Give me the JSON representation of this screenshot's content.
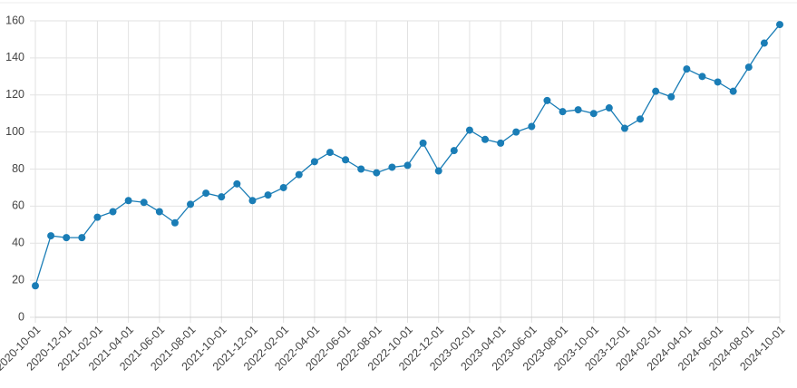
{
  "chart_data": {
    "type": "line",
    "categories": [
      "2020-10-01",
      null,
      "2020-12-01",
      null,
      "2021-02-01",
      null,
      "2021-04-01",
      null,
      "2021-06-01",
      null,
      "2021-08-01",
      null,
      "2021-10-01",
      null,
      "2021-12-01",
      null,
      "2022-02-01",
      null,
      "2022-04-01",
      null,
      "2022-06-01",
      null,
      "2022-08-01",
      null,
      "2022-10-01",
      null,
      "2022-12-01",
      null,
      "2023-02-01",
      null,
      "2023-04-01",
      null,
      "2023-06-01",
      null,
      "2023-08-01",
      null,
      "2023-10-01",
      null,
      "2023-12-01",
      null,
      "2024-02-01",
      null,
      "2024-04-01",
      null,
      "2024-06-01",
      null,
      "2024-08-01",
      null,
      "2024-10-01"
    ],
    "values": [
      17,
      44,
      43,
      43,
      54,
      57,
      63,
      62,
      57,
      51,
      61,
      67,
      65,
      72,
      63,
      66,
      70,
      77,
      84,
      89,
      85,
      80,
      78,
      81,
      82,
      94,
      79,
      90,
      101,
      96,
      94,
      100,
      103,
      117,
      111,
      112,
      110,
      113,
      102,
      107,
      122,
      119,
      134,
      130,
      127,
      122,
      135,
      148,
      158
    ],
    "color": "#1a7db6",
    "ylim": [
      0,
      160
    ],
    "yticks": [
      0,
      20,
      40,
      60,
      80,
      100,
      120,
      140,
      160
    ],
    "grid": true
  }
}
